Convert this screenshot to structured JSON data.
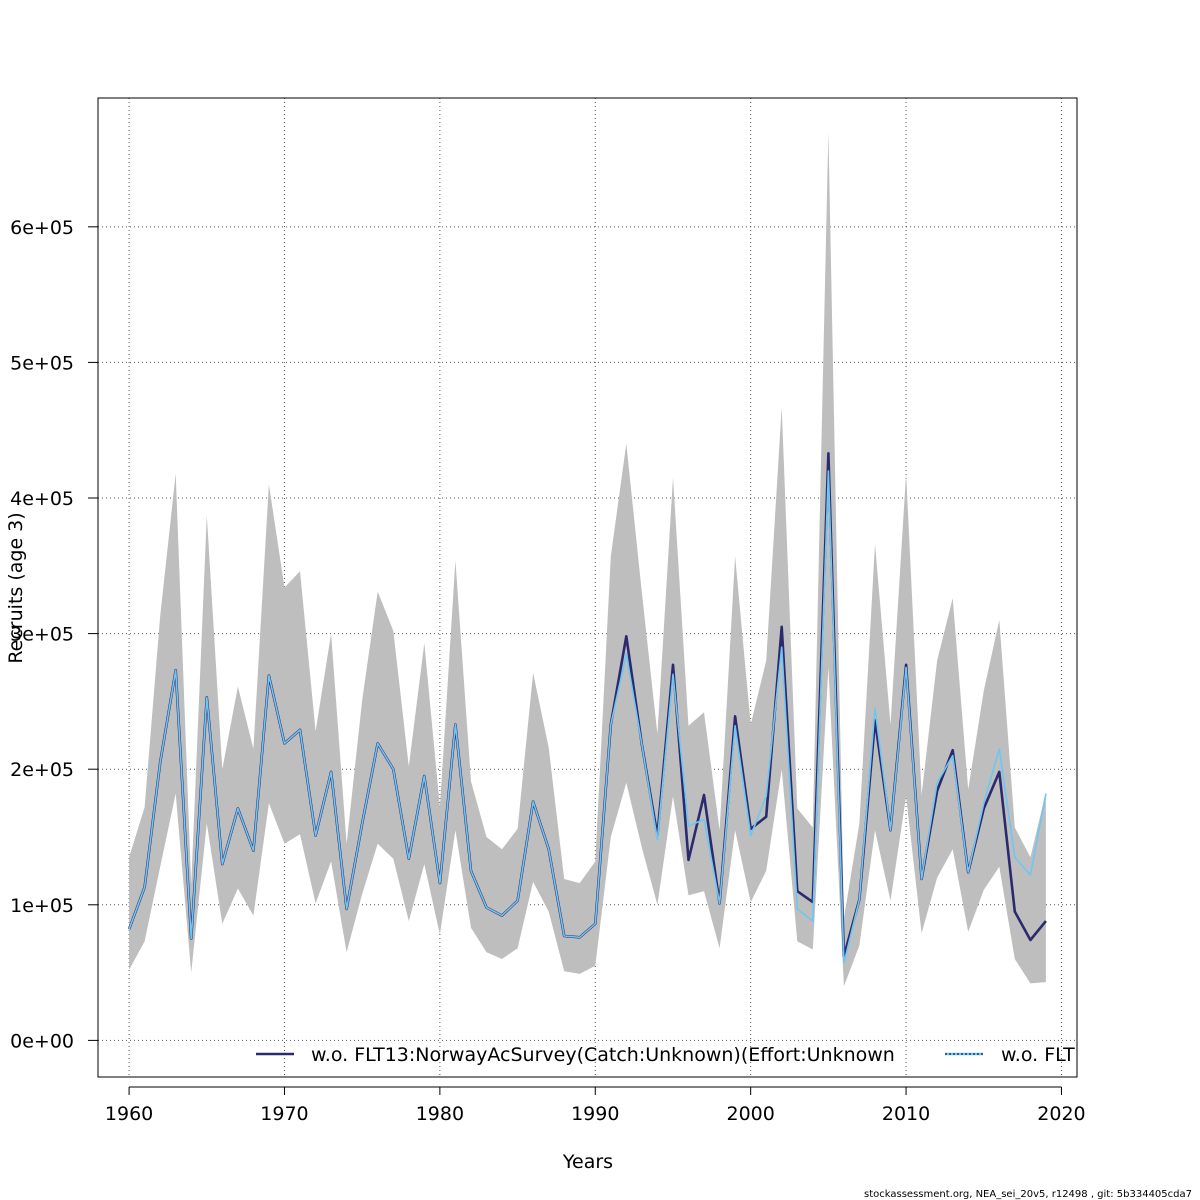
{
  "chart_data": {
    "type": "line",
    "xlabel": "Years",
    "ylabel": "Recruits (age 3)",
    "xlim": [
      1958,
      2021
    ],
    "ylim": [
      -27000,
      695000
    ],
    "x_ticks": [
      1960,
      1970,
      1980,
      1990,
      2000,
      2010,
      2020
    ],
    "y_ticks": [
      0,
      100000,
      200000,
      300000,
      400000,
      500000,
      600000
    ],
    "y_tick_labels": [
      "0e+00",
      "1e+05",
      "2e+05",
      "3e+05",
      "4e+05",
      "5e+05",
      "6e+05"
    ],
    "grid": true,
    "legend_placement": "bottom",
    "x": [
      1960,
      1961,
      1962,
      1963,
      1964,
      1965,
      1966,
      1967,
      1968,
      1969,
      1970,
      1971,
      1972,
      1973,
      1974,
      1975,
      1976,
      1977,
      1978,
      1979,
      1980,
      1981,
      1982,
      1983,
      1984,
      1985,
      1986,
      1987,
      1988,
      1989,
      1990,
      1991,
      1992,
      1993,
      1994,
      1995,
      1996,
      1997,
      1998,
      1999,
      2000,
      2001,
      2002,
      2003,
      2004,
      2005,
      2006,
      2007,
      2008,
      2009,
      2010,
      2011,
      2012,
      2013,
      2014,
      2015,
      2016,
      2017,
      2018,
      2019
    ],
    "confidence_band": {
      "color": "#bebebe",
      "lower": [
        52000,
        73000,
        128000,
        182000,
        50000,
        160000,
        86000,
        112000,
        92000,
        175000,
        145000,
        152000,
        101000,
        132000,
        65000,
        108000,
        145000,
        134000,
        88000,
        130000,
        78000,
        155000,
        83000,
        65000,
        60000,
        68000,
        117000,
        95000,
        51000,
        49000,
        55000,
        150000,
        190000,
        142000,
        100000,
        180000,
        107000,
        110000,
        68000,
        155000,
        102000,
        125000,
        200000,
        73000,
        67000,
        275000,
        40000,
        70000,
        155000,
        103000,
        180000,
        79000,
        120000,
        141000,
        80000,
        111000,
        128000,
        60000,
        42000,
        43000
      ],
      "upper": [
        135000,
        172000,
        313000,
        418000,
        115000,
        387000,
        200000,
        261000,
        215000,
        410000,
        334000,
        346000,
        228000,
        300000,
        145000,
        251000,
        331000,
        302000,
        202000,
        293000,
        172000,
        354000,
        191000,
        150000,
        141000,
        156000,
        271000,
        216000,
        119000,
        116000,
        132000,
        357000,
        440000,
        330000,
        226000,
        415000,
        232000,
        242000,
        155000,
        357000,
        233000,
        280000,
        467000,
        171000,
        157000,
        670000,
        90000,
        160000,
        366000,
        233000,
        418000,
        181000,
        280000,
        326000,
        185000,
        258000,
        310000,
        157000,
        135000,
        183000
      ]
    },
    "series": [
      {
        "name": "w.o. FLT13:NorwayAcSurvey(Catch:Unknown)(Effort:Unknown",
        "color": "#2b2a6e",
        "values": [
          82000,
          113000,
          205000,
          273000,
          75000,
          253000,
          130000,
          171000,
          140000,
          269000,
          219000,
          229000,
          151000,
          198000,
          97000,
          160000,
          219000,
          200000,
          134000,
          195000,
          116000,
          233000,
          125000,
          98000,
          92000,
          103000,
          176000,
          141000,
          77000,
          76000,
          86000,
          233000,
          298000,
          218000,
          151000,
          277000,
          133000,
          181000,
          101000,
          239000,
          156000,
          165000,
          305000,
          110000,
          102000,
          433000,
          62000,
          104000,
          236000,
          155000,
          277000,
          119000,
          184000,
          214000,
          124000,
          171000,
          198000,
          95000,
          74000,
          88000
        ]
      },
      {
        "name": "w.o. FLT",
        "color": "#6ec6f2",
        "values": [
          82000,
          113000,
          205000,
          273000,
          75000,
          253000,
          130000,
          171000,
          140000,
          269000,
          219000,
          229000,
          151000,
          198000,
          97000,
          160000,
          219000,
          200000,
          134000,
          195000,
          116000,
          233000,
          125000,
          98000,
          92000,
          103000,
          176000,
          141000,
          77000,
          76000,
          86000,
          233000,
          285000,
          218000,
          148000,
          270000,
          158000,
          163000,
          101000,
          232000,
          151000,
          180000,
          290000,
          97000,
          88000,
          420000,
          57000,
          104000,
          245000,
          155000,
          275000,
          119000,
          190000,
          210000,
          124000,
          175000,
          215000,
          135000,
          122000,
          182000
        ]
      }
    ]
  },
  "footer_text": "stockassessment.org, NEA_sei_20v5, r12498 , git: 5b334405cda7"
}
